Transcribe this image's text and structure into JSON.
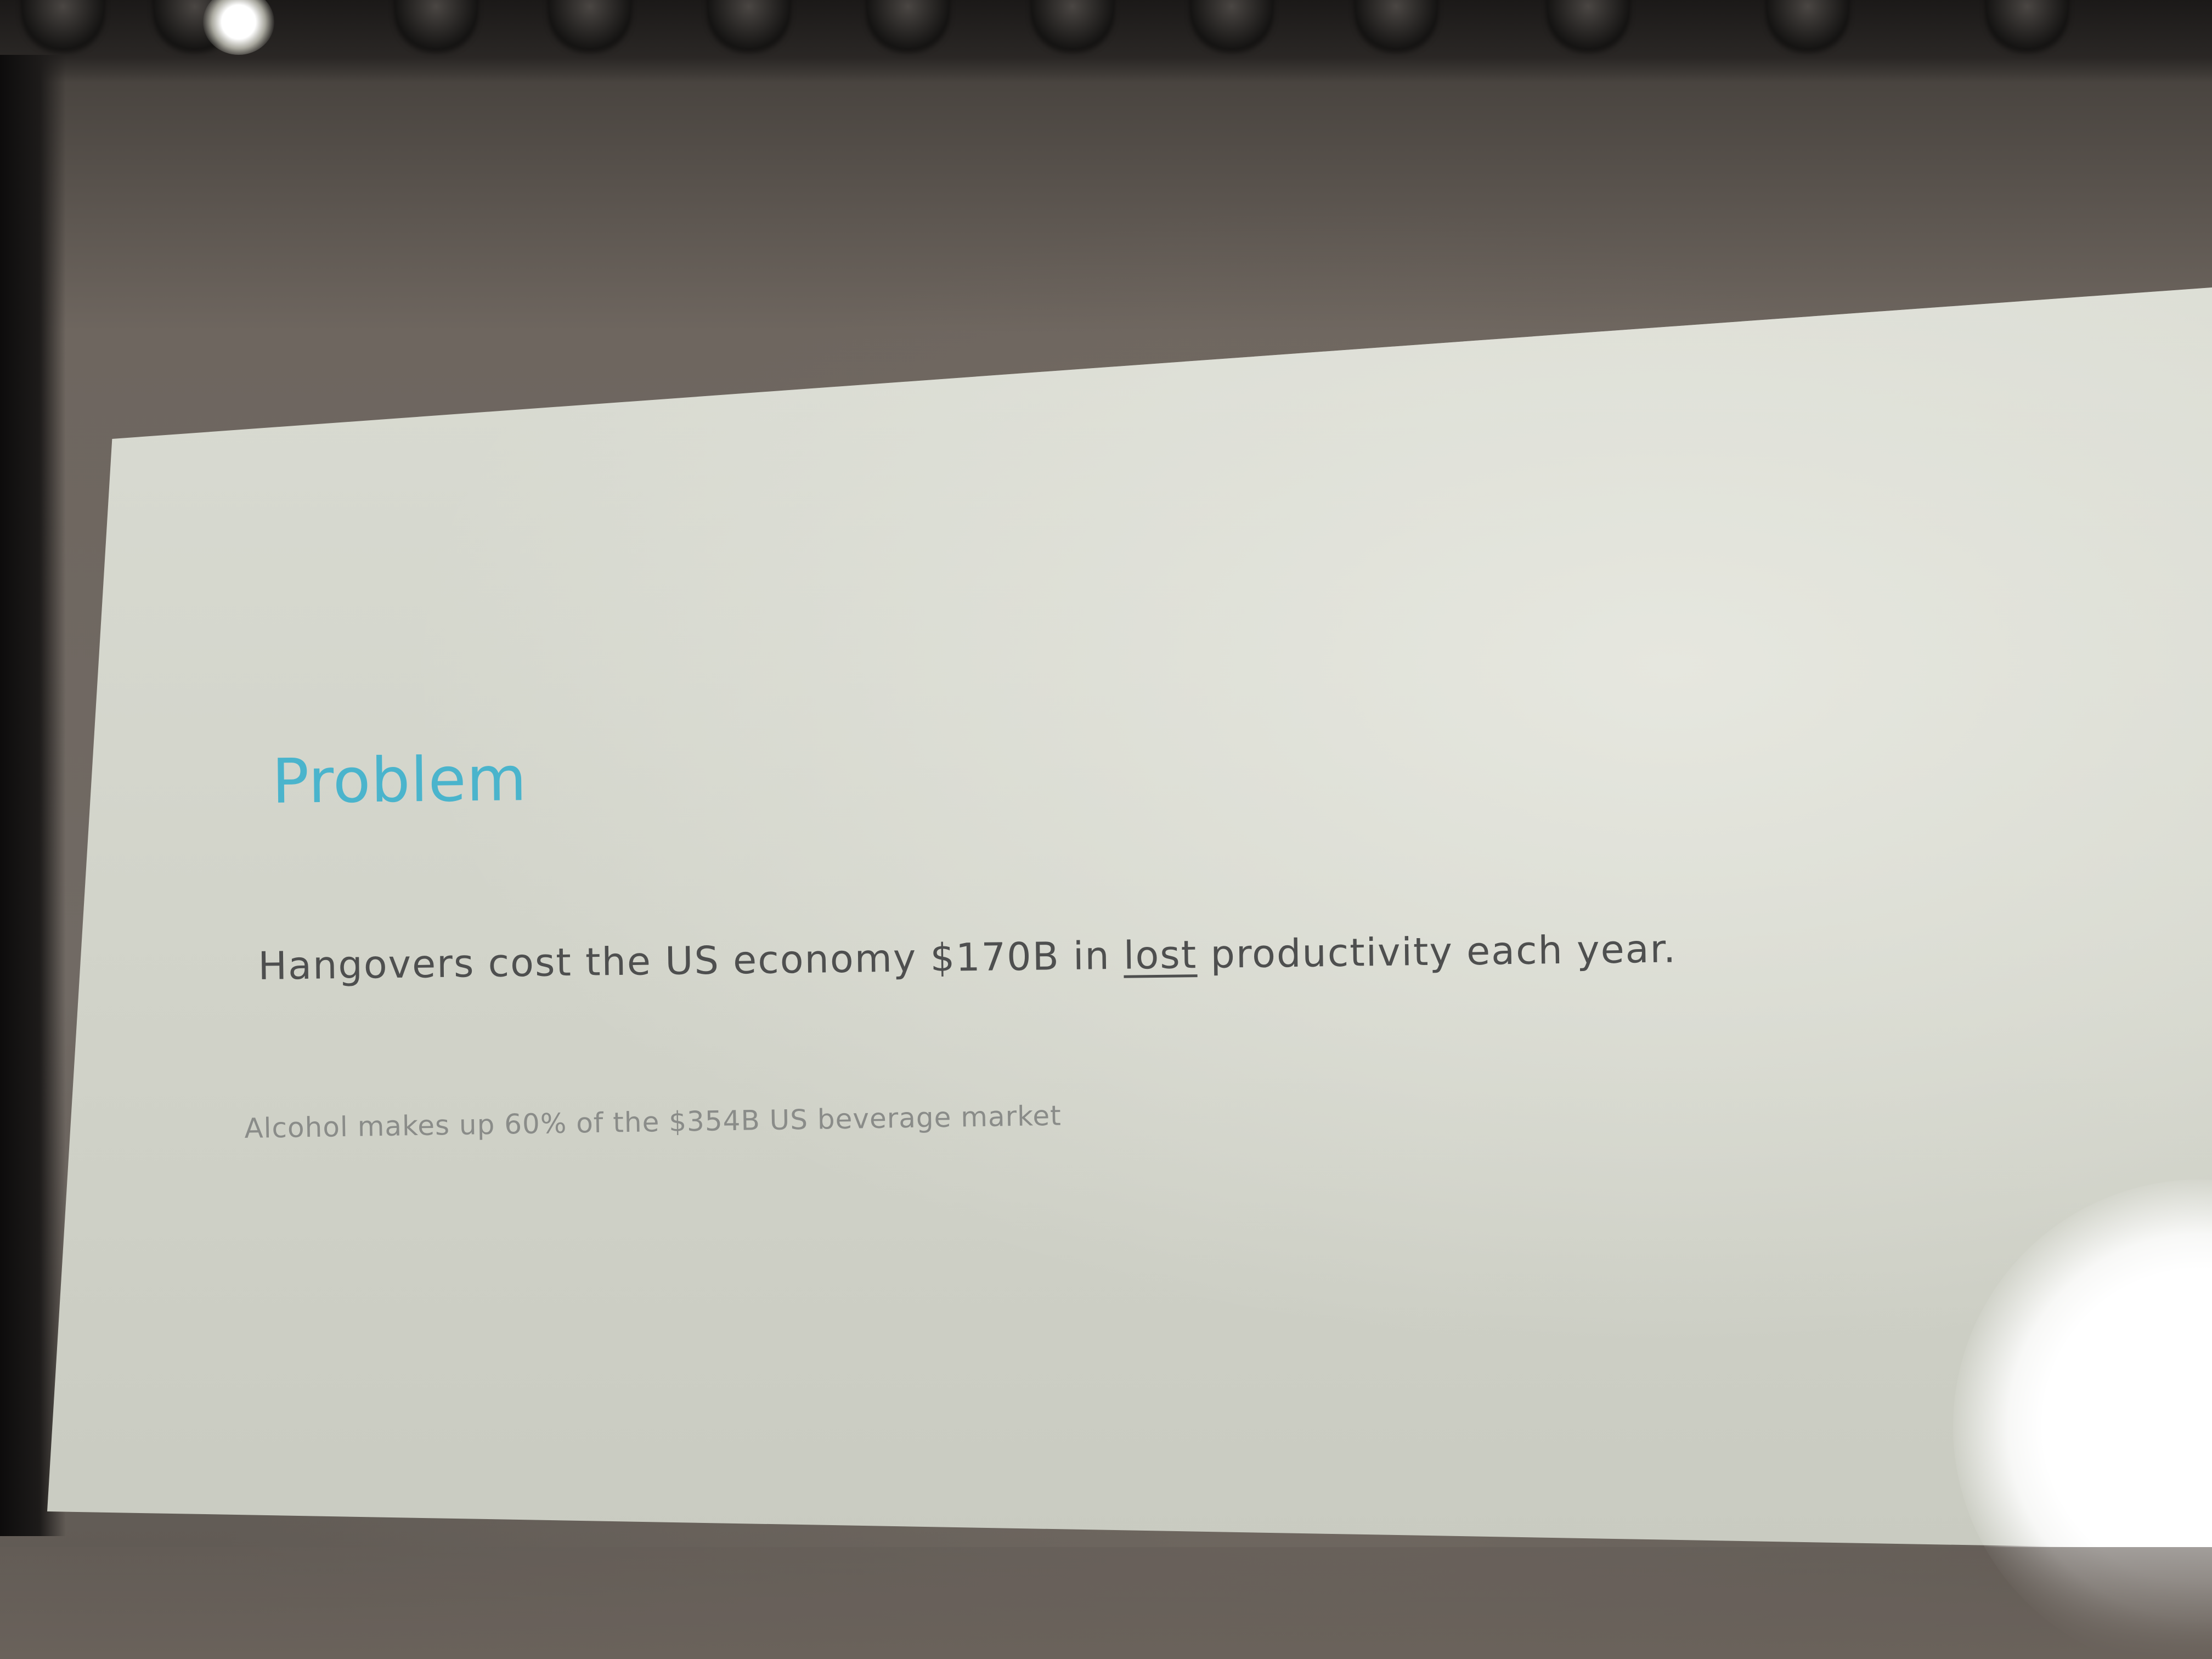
{
  "slide": {
    "title": "Problem",
    "body_before": "Hangovers cost the US economy $170B in ",
    "body_underlined": "lost",
    "body_after": " productivity each year.",
    "note": "Alcohol makes up 60% of the $354B US beverage market"
  },
  "colors": {
    "title": "#4ab4cc",
    "body": "#4e4f4f",
    "note": "#8a8c89",
    "screen": "#d5d7cd",
    "room": "#6e665f"
  },
  "icons": [
    "stage-light-icon",
    "light-flare-icon"
  ]
}
